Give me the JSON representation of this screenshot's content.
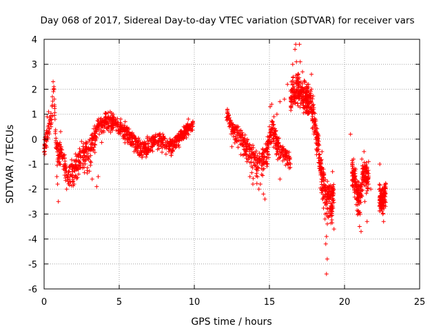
{
  "chart_data": {
    "type": "scatter",
    "title": "Day 068 of 2017, Sidereal Day-to-day VTEC variation (SDTVAR) for receiver vars",
    "xlabel": "GPS time / hours",
    "ylabel": "SDTVAR / TECUs",
    "xlim": [
      0,
      25
    ],
    "ylim": [
      -6,
      4
    ],
    "xticks": [
      "0",
      "5",
      "10",
      "15",
      "20",
      "25"
    ],
    "yticks": [
      "4",
      "3",
      "2",
      "1",
      "0",
      "-1",
      "-2",
      "-3",
      "-4",
      "-5",
      "-6"
    ],
    "grid": true,
    "marker": "+",
    "series": [
      {
        "name": "SDTVAR",
        "color": "#ff0000",
        "segments": [
          {
            "x_start": 0.0,
            "x_end": 9.95,
            "anchors": [
              [
                0.0,
                -0.4
              ],
              [
                0.3,
                0.5
              ],
              [
                0.5,
                1.0
              ],
              [
                0.65,
                2.0
              ],
              [
                0.8,
                -0.3
              ],
              [
                1.2,
                -0.6
              ],
              [
                1.6,
                -1.5
              ],
              [
                2.0,
                -1.2
              ],
              [
                2.5,
                -0.6
              ],
              [
                3.0,
                -0.5
              ],
              [
                3.5,
                0.3
              ],
              [
                4.2,
                0.8
              ],
              [
                4.8,
                0.6
              ],
              [
                5.5,
                0.3
              ],
              [
                6.5,
                -0.4
              ],
              [
                7.5,
                0.0
              ],
              [
                8.5,
                -0.3
              ],
              [
                9.3,
                0.3
              ],
              [
                9.95,
                0.6
              ]
            ],
            "upper_offsets": [
              [
                0.0,
                0.3
              ],
              [
                1.0,
                0.4
              ],
              [
                2.0,
                0.6
              ],
              [
                3.0,
                0.6
              ],
              [
                4.0,
                0.4
              ],
              [
                5.5,
                0.3
              ],
              [
                7.0,
                0.4
              ],
              [
                9.95,
                0.2
              ]
            ],
            "lower_offsets": [
              [
                0.0,
                0.5
              ],
              [
                1.0,
                0.8
              ],
              [
                2.0,
                0.9
              ],
              [
                3.0,
                1.0
              ],
              [
                4.0,
                0.7
              ],
              [
                6.0,
                0.5
              ],
              [
                9.95,
                0.4
              ]
            ],
            "count": 950
          },
          {
            "x_start": 12.1,
            "x_end": 16.4,
            "anchors": [
              [
                12.1,
                1.1
              ],
              [
                12.6,
                0.4
              ],
              [
                13.2,
                0.0
              ],
              [
                13.8,
                -0.6
              ],
              [
                14.3,
                -1.0
              ],
              [
                14.8,
                -0.5
              ],
              [
                15.2,
                0.4
              ],
              [
                15.6,
                -0.3
              ],
              [
                16.0,
                -0.6
              ],
              [
                16.4,
                -0.8
              ]
            ],
            "upper_offsets": [
              [
                12.1,
                0.3
              ],
              [
                14.0,
                0.5
              ],
              [
                16.4,
                0.4
              ]
            ],
            "lower_offsets": [
              [
                12.1,
                0.4
              ],
              [
                14.0,
                1.0
              ],
              [
                16.4,
                0.5
              ]
            ],
            "count": 420
          },
          {
            "x_start": 16.4,
            "x_end": 19.3,
            "anchors": [
              [
                16.4,
                1.5
              ],
              [
                16.8,
                2.0
              ],
              [
                17.3,
                1.6
              ],
              [
                17.8,
                1.4
              ],
              [
                18.2,
                0.0
              ],
              [
                18.5,
                -1.5
              ],
              [
                18.8,
                -2.2
              ],
              [
                19.1,
                -2.4
              ],
              [
                19.3,
                -2.1
              ]
            ],
            "upper_offsets": [
              [
                16.4,
                0.9
              ],
              [
                17.0,
                1.0
              ],
              [
                18.5,
                0.6
              ],
              [
                19.3,
                0.6
              ]
            ],
            "lower_offsets": [
              [
                16.4,
                0.6
              ],
              [
                17.5,
                0.6
              ],
              [
                18.5,
                1.2
              ],
              [
                19.3,
                1.2
              ]
            ],
            "count": 520
          },
          {
            "x_start": 20.5,
            "x_end": 21.6,
            "anchors": [
              [
                20.5,
                -1.2
              ],
              [
                20.8,
                -2.0
              ],
              [
                21.0,
                -2.4
              ],
              [
                21.2,
                -1.5
              ],
              [
                21.4,
                -1.3
              ],
              [
                21.6,
                -1.6
              ]
            ],
            "upper_offsets": [
              [
                20.5,
                0.6
              ],
              [
                21.6,
                0.6
              ]
            ],
            "lower_offsets": [
              [
                20.5,
                0.9
              ],
              [
                21.6,
                0.9
              ]
            ],
            "count": 220
          },
          {
            "x_start": 22.3,
            "x_end": 22.75,
            "anchors": [
              [
                22.3,
                -2.2
              ],
              [
                22.5,
                -2.5
              ],
              [
                22.75,
                -2.2
              ]
            ],
            "upper_offsets": [
              [
                22.3,
                0.6
              ],
              [
                22.75,
                0.6
              ]
            ],
            "lower_offsets": [
              [
                22.3,
                0.7
              ],
              [
                22.75,
                0.7
              ]
            ],
            "count": 110
          }
        ],
        "points": [
          [
            0.05,
            -0.6
          ],
          [
            0.1,
            0.2
          ],
          [
            0.2,
            0.9
          ],
          [
            0.3,
            1.1
          ],
          [
            0.45,
            0.6
          ],
          [
            0.55,
            1.7
          ],
          [
            0.6,
            2.3
          ],
          [
            0.65,
            2.1
          ],
          [
            0.7,
            1.3
          ],
          [
            0.75,
            0.3
          ],
          [
            0.85,
            -1.5
          ],
          [
            0.9,
            -1.8
          ],
          [
            0.95,
            -2.5
          ],
          [
            1.0,
            -0.8
          ],
          [
            1.05,
            -0.3
          ],
          [
            1.1,
            0.3
          ],
          [
            1.3,
            -1.2
          ],
          [
            1.5,
            -2.0
          ],
          [
            1.7,
            -1.7
          ],
          [
            2.0,
            -1.8
          ],
          [
            2.3,
            -1.4
          ],
          [
            2.6,
            -1.0
          ],
          [
            2.9,
            -0.7
          ],
          [
            3.2,
            -1.6
          ],
          [
            3.5,
            -1.9
          ],
          [
            3.6,
            -1.5
          ],
          [
            3.8,
            0.6
          ],
          [
            4.1,
            0.9
          ],
          [
            4.4,
            1.1
          ],
          [
            4.6,
            1.0
          ],
          [
            5.1,
            0.8
          ],
          [
            5.4,
            0.7
          ],
          [
            5.8,
            -0.2
          ],
          [
            6.2,
            -0.3
          ],
          [
            6.8,
            -0.6
          ],
          [
            7.2,
            0.1
          ],
          [
            7.9,
            0.2
          ],
          [
            8.3,
            -0.5
          ],
          [
            8.8,
            0.1
          ],
          [
            9.3,
            0.5
          ],
          [
            9.6,
            0.8
          ],
          [
            9.9,
            0.7
          ],
          [
            12.2,
            1.2
          ],
          [
            12.3,
            0.8
          ],
          [
            12.5,
            -0.3
          ],
          [
            12.8,
            0.5
          ],
          [
            13.3,
            -0.4
          ],
          [
            13.5,
            -0.9
          ],
          [
            13.7,
            -1.5
          ],
          [
            13.9,
            -1.8
          ],
          [
            14.1,
            -1.2
          ],
          [
            14.3,
            -2.0
          ],
          [
            14.4,
            -1.8
          ],
          [
            14.6,
            -2.2
          ],
          [
            14.7,
            -2.4
          ],
          [
            14.85,
            -1.0
          ],
          [
            15.0,
            0.5
          ],
          [
            15.05,
            1.3
          ],
          [
            15.15,
            1.4
          ],
          [
            15.3,
            0.9
          ],
          [
            15.5,
            1.0
          ],
          [
            15.7,
            -1.6
          ],
          [
            15.9,
            -0.3
          ],
          [
            16.1,
            -0.8
          ],
          [
            16.2,
            -0.5
          ],
          [
            15.7,
            1.5
          ],
          [
            16.0,
            1.6
          ],
          [
            16.2,
            2.2
          ],
          [
            16.55,
            3.0
          ],
          [
            16.7,
            3.6
          ],
          [
            16.75,
            3.8
          ],
          [
            16.8,
            3.1
          ],
          [
            16.9,
            2.6
          ],
          [
            17.0,
            3.8
          ],
          [
            17.05,
            3.1
          ],
          [
            17.2,
            2.7
          ],
          [
            17.4,
            1.3
          ],
          [
            17.6,
            2.2
          ],
          [
            17.8,
            2.6
          ],
          [
            18.0,
            0.5
          ],
          [
            18.1,
            0.0
          ],
          [
            18.2,
            -0.4
          ],
          [
            18.4,
            -1.0
          ],
          [
            18.5,
            -0.5
          ],
          [
            18.6,
            -1.2
          ],
          [
            18.7,
            -3.2
          ],
          [
            18.75,
            -4.2
          ],
          [
            18.8,
            -3.9
          ],
          [
            18.85,
            -4.8
          ],
          [
            18.8,
            -5.4
          ],
          [
            18.9,
            -3.1
          ],
          [
            19.0,
            -1.9
          ],
          [
            19.1,
            -2.8
          ],
          [
            19.2,
            -1.3
          ],
          [
            19.3,
            -3.6
          ],
          [
            20.4,
            0.2
          ],
          [
            20.6,
            -0.8
          ],
          [
            20.75,
            -1.2
          ],
          [
            20.9,
            -2.9
          ],
          [
            21.0,
            -3.5
          ],
          [
            21.1,
            -3.7
          ],
          [
            21.15,
            -0.8
          ],
          [
            21.3,
            -0.5
          ],
          [
            21.35,
            -2.5
          ],
          [
            21.5,
            -3.3
          ],
          [
            21.6,
            -0.9
          ],
          [
            21.75,
            -2.0
          ],
          [
            21.6,
            -1.8
          ],
          [
            21.5,
            -1.3
          ],
          [
            22.35,
            -1.0
          ],
          [
            22.45,
            -2.3
          ],
          [
            22.5,
            -2.8
          ],
          [
            22.55,
            -3.0
          ],
          [
            22.6,
            -3.3
          ],
          [
            22.7,
            -2.5
          ],
          [
            22.75,
            -1.8
          ]
        ]
      }
    ]
  }
}
